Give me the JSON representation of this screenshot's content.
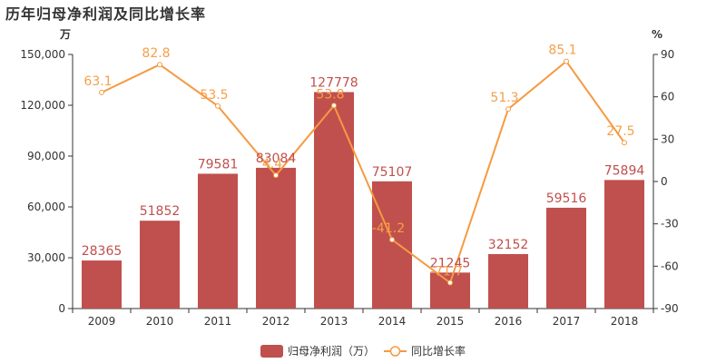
{
  "title": "历年归母净利润及同比增长率",
  "colors": {
    "bar": "#c0504d",
    "line": "#f59a42",
    "axis": "#333333"
  },
  "chart_data": {
    "type": "bar",
    "categories": [
      "2009",
      "2010",
      "2011",
      "2012",
      "2013",
      "2014",
      "2015",
      "2016",
      "2017",
      "2018"
    ],
    "series": [
      {
        "name": "归母净利润（万）",
        "type": "bar",
        "axis": "left",
        "values": [
          28365,
          51852,
          79581,
          83084,
          127778,
          75107,
          21245,
          32152,
          59516,
          75894
        ],
        "labels": [
          "28365",
          "51852",
          "79581",
          "83084",
          "127778",
          "75107",
          "21245",
          "32152",
          "59516",
          "75894"
        ]
      },
      {
        "name": "同比增长率",
        "type": "line",
        "axis": "right",
        "values": [
          63.1,
          82.8,
          53.5,
          4.4,
          53.8,
          -41.2,
          -71.7,
          51.3,
          85.1,
          27.5
        ],
        "labels": [
          "63.1",
          "82.8",
          "53.5",
          "4.4",
          "53.8",
          "-41.2",
          "-71.7",
          "51.3",
          "85.1",
          "27.5"
        ]
      }
    ],
    "y_left": {
      "unit": "万",
      "min": 0,
      "max": 150000,
      "ticks": [
        0,
        30000,
        60000,
        90000,
        120000,
        150000
      ],
      "tick_labels": [
        "0",
        "30,000",
        "60,000",
        "90,000",
        "120,000",
        "150,000"
      ]
    },
    "y_right": {
      "unit": "%",
      "min": -90,
      "max": 90,
      "ticks": [
        -90,
        -60,
        -30,
        0,
        30,
        60,
        90
      ],
      "tick_labels": [
        "-90",
        "-60",
        "-30",
        "0",
        "30",
        "60",
        "90"
      ]
    },
    "legend_position": "bottom-center",
    "grid": false
  }
}
